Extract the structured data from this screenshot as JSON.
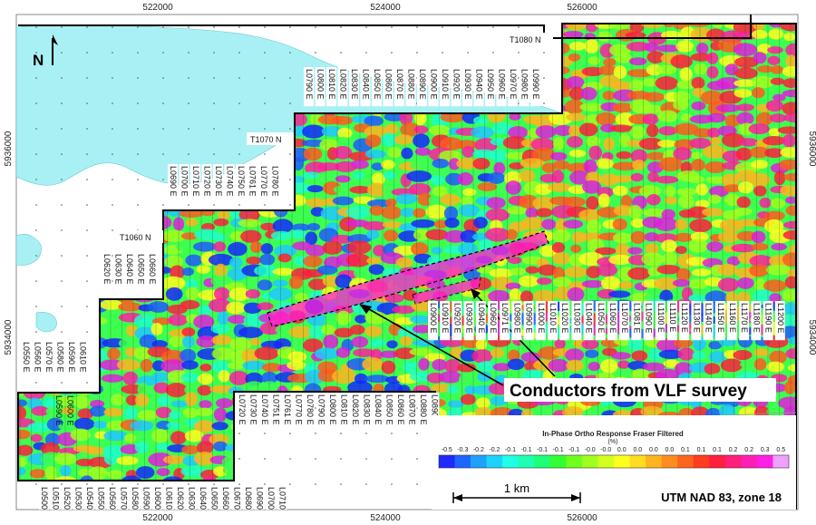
{
  "map": {
    "easting_labels": [
      "522000",
      "524000",
      "526000"
    ],
    "northing_labels": [
      "5936000",
      "5934000"
    ],
    "grid_labels": [
      "T1080 N",
      "T1070 N",
      "T1060 N"
    ],
    "north_label": "N",
    "callout": "Conductors from VLF survey",
    "projection": "UTM NAD 83, zone 18",
    "scale_label": "1 km",
    "legend": {
      "title": "In-Phase Ortho Response Fraser Filtered",
      "unit": "(%)",
      "ticks": [
        "-0.5",
        "-0.3",
        "-0.2",
        "-0.2",
        "-0.1",
        "-0.1",
        "-0.1",
        "-0.1",
        "-0.1",
        "-0.0",
        "-0.0",
        "0.0",
        "0.0",
        "0.0",
        "0.0",
        "0.1",
        "0.1",
        "0.1",
        "0.2",
        "0.2",
        "0.3",
        "0.5"
      ],
      "colors": [
        "#1e28ff",
        "#1e64ff",
        "#1ea0ff",
        "#1ed2ff",
        "#1effe6",
        "#1effb4",
        "#1eff78",
        "#32ff32",
        "#6eff1e",
        "#a0ff1e",
        "#d2ff1e",
        "#ffff1e",
        "#ffdc1e",
        "#ffb41e",
        "#ff8c1e",
        "#ff641e",
        "#ff3c1e",
        "#ff1e3c",
        "#ff1e78",
        "#ff1eb4",
        "#ff1ee6",
        "#f0a0ff"
      ]
    },
    "colors": {
      "lake": "#a8f0f4",
      "outline": "#000000"
    }
  },
  "lines": {
    "row1": [
      "L0790 E",
      "L0800 E",
      "L0810 E",
      "L0820 E",
      "L0830 E",
      "L0840 E",
      "L0850 E",
      "L0860 E",
      "L0870 E",
      "L0880 E",
      "L0890 E",
      "L0900 E",
      "L0910 E",
      "L0920 E",
      "L0930 E",
      "L0940 E",
      "L0950 E",
      "L0960 E",
      "L0970 E",
      "L0980 E",
      "L0990 E"
    ],
    "row2": [
      "L0690 E",
      "L0700 E",
      "L0710 E",
      "L0720 E",
      "L0730 E",
      "L0740 E",
      "L0750 E",
      "L0761 E",
      "L0770 E",
      "L0780 E"
    ],
    "row3": [
      "L0620 E",
      "L0630 E",
      "L0640 E",
      "L0650 E",
      "L0660 E"
    ],
    "row4": [
      "L0550 E",
      "L0560 E",
      "L0570 E",
      "L0580 E",
      "L0590 E",
      "L0610 E"
    ],
    "row5": [
      "L0900 E",
      "L0910 E",
      "L0920 E",
      "L0930 E",
      "L0940 E",
      "L0960 E",
      "L0971 E",
      "L0980 E",
      "L0990 E",
      "L1000 E",
      "L1010 E",
      "L1020 E",
      "L1030 E",
      "L1040 E",
      "L1050 E",
      "L1060 E",
      "L1070 E",
      "L1081 E",
      "L1090 E",
      "L1100 E",
      "L1110 E",
      "L1120 E",
      "L1130 E",
      "L1140 E",
      "L1150 E",
      "L1160 E",
      "L1170 E",
      "L1180 E",
      "L1190 E",
      "L1200 E"
    ],
    "row6": [
      "L0720 E",
      "L0730 E",
      "L0740 E",
      "L0751 E",
      "L0761 E",
      "L0770 E",
      "L0780 E",
      "L0790 E",
      "L0800 E",
      "L0810 E",
      "L0820 E",
      "L0830 E",
      "L0840 E",
      "L0850 E",
      "L0860 E",
      "L0870 E",
      "L0880 E",
      "L0890 E"
    ],
    "row7": [
      "L0590 E",
      "L0600 E"
    ],
    "row8": [
      "L0500 E",
      "L0510 E",
      "L0520 E",
      "L0530 E",
      "L0540 E",
      "L0550 E",
      "L0560 E",
      "L0570 E",
      "L0580 E",
      "L0590 E",
      "L0600 E",
      "L0610 E",
      "L0620 E",
      "L0630 E",
      "L0640 E",
      "L0650 E",
      "L0660 E",
      "L0670 E",
      "L0680 E",
      "L0690 E",
      "L0700 E",
      "L0710 E"
    ]
  }
}
